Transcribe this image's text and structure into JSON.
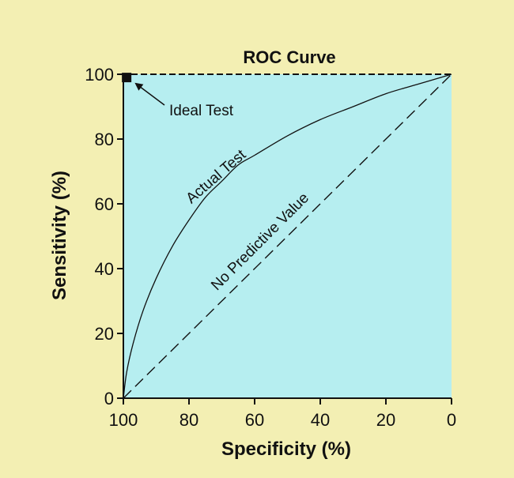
{
  "colors": {
    "page_background": "#f3efb3",
    "plot_background": "#b6eef0",
    "ink": "#111111"
  },
  "chart_data": {
    "type": "line",
    "title": "ROC Curve",
    "xlabel": "Specificity (%)",
    "ylabel": "Sensitivity (%)",
    "xlim": [
      100,
      0
    ],
    "ylim": [
      0,
      100
    ],
    "x_reversed": true,
    "xticks": [
      "100",
      "80",
      "60",
      "40",
      "20",
      "0"
    ],
    "yticks": [
      "0",
      "20",
      "40",
      "60",
      "80",
      "100"
    ],
    "grid": false,
    "series": [
      {
        "name": "Actual Test",
        "style": "solid",
        "x": [
          100,
          99,
          97,
          94,
          90,
          85,
          80,
          75,
          70,
          65,
          60,
          50,
          40,
          30,
          20,
          10,
          0
        ],
        "y": [
          0,
          8,
          17,
          27,
          37,
          47,
          55,
          62,
          67,
          72,
          75,
          81,
          86,
          90,
          94,
          97,
          100
        ]
      },
      {
        "name": "No Predictive Value",
        "style": "dashed",
        "x": [
          100,
          0
        ],
        "y": [
          0,
          100
        ]
      },
      {
        "name": "Ideal Test",
        "style": "dashed",
        "x": [
          100,
          100,
          0
        ],
        "y": [
          0,
          100,
          100
        ]
      }
    ],
    "annotations": [
      {
        "text": "Ideal Test",
        "marker": "square",
        "x": 99,
        "y": 99
      },
      {
        "text": "Actual Test"
      },
      {
        "text": "No Predictive Value"
      }
    ]
  }
}
